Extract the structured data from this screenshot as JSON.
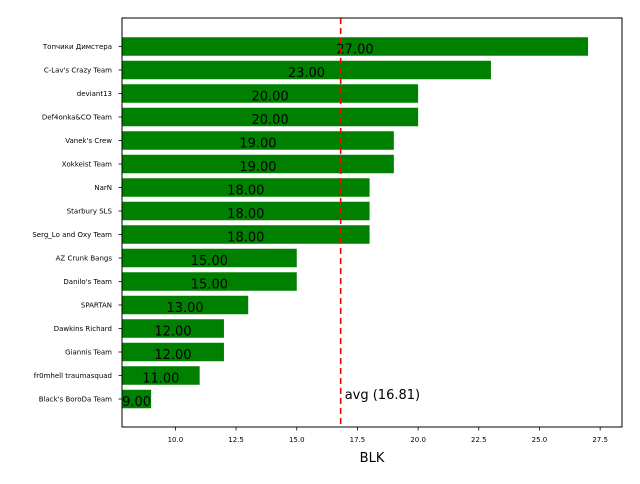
{
  "chart_data": {
    "type": "bar",
    "orientation": "horizontal",
    "categories": [
      "Топчики Димстера",
      "C-Lav's Crazy Team",
      "deviant13",
      "Def4onka&CO Team",
      "Vanek's Crew",
      "Xokkeist Team",
      "NarN",
      "Starbury SLS",
      "Serg_Lo and Oxy Team",
      "AZ Crunk Bangs",
      "Danilo's Team",
      "SPARTAN",
      "Dawkins Richard",
      "Giannis Team",
      "fr0mhell traumasquad",
      "Black's BoroDa Team"
    ],
    "values": [
      27,
      23,
      20,
      20,
      19,
      19,
      18,
      18,
      18,
      15,
      15,
      13,
      12,
      12,
      11,
      9
    ],
    "value_labels": [
      "27.00",
      "23.00",
      "20.00",
      "20.00",
      "19.00",
      "19.00",
      "18.00",
      "18.00",
      "18.00",
      "15.00",
      "15.00",
      "13.00",
      "12.00",
      "12.00",
      "11.00",
      "9.00"
    ],
    "xlabel": "BLK",
    "xlim": [
      7.8,
      28.4
    ],
    "xticks": [
      10.0,
      12.5,
      15.0,
      17.5,
      20.0,
      22.5,
      25.0,
      27.5
    ],
    "xtick_labels": [
      "10.0",
      "12.5",
      "15.0",
      "17.5",
      "20.0",
      "22.5",
      "25.0",
      "27.5"
    ],
    "average": 16.81,
    "average_label": "avg (16.81)",
    "bar_color": "#008000",
    "avg_line_color": "#ff0000",
    "grid": false
  }
}
